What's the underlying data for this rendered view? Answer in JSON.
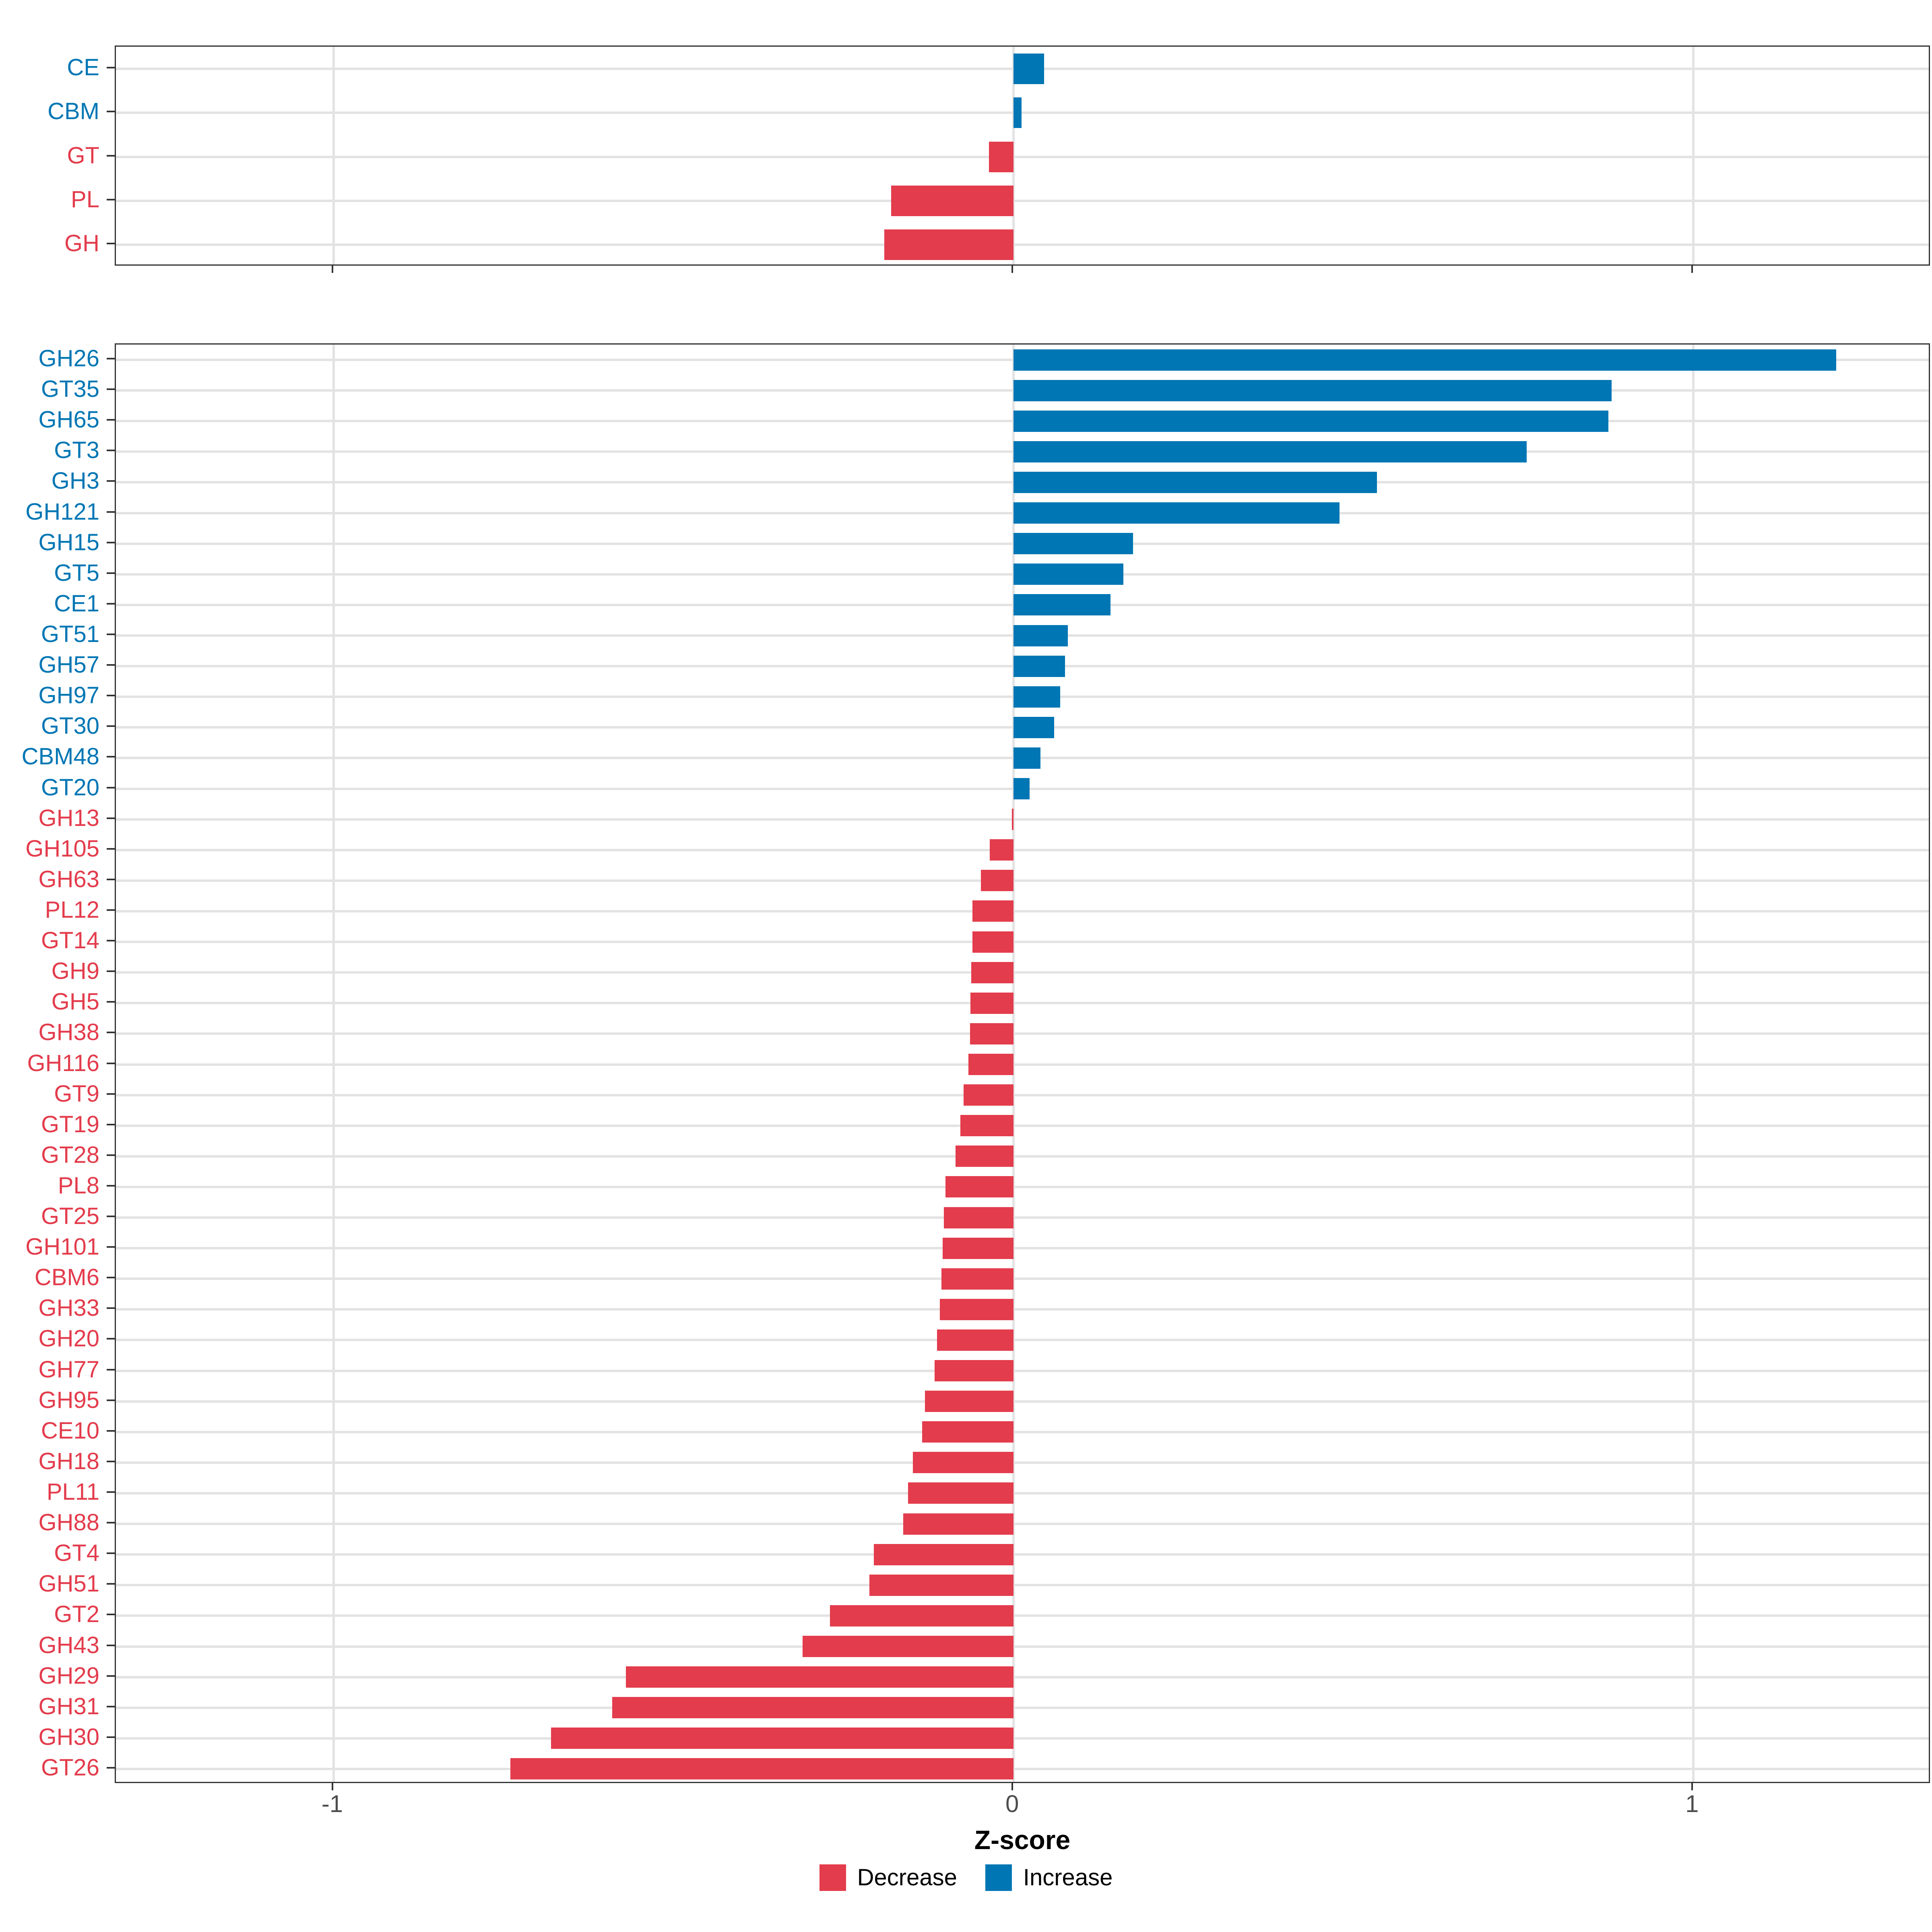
{
  "colors": {
    "increase": "#0076B4",
    "decrease": "#E33C4C",
    "grid": "#E3E3E3",
    "axis_text": "#4D4D4D",
    "panel_border": "#333333",
    "tick_mark": "#333333",
    "background": "#FFFFFF"
  },
  "axis": {
    "title": "Z-score",
    "tick_labels": [
      "-1",
      "0",
      "1"
    ]
  },
  "legend": {
    "items": [
      {
        "label": "Decrease",
        "color_key": "decrease"
      },
      {
        "label": "Increase",
        "color_key": "increase"
      }
    ]
  },
  "chart_data": {
    "type": "bar",
    "orientation": "horizontal",
    "title": "",
    "xlabel": "Z-score",
    "ylabel": "",
    "xlim": [
      -1.32,
      1.35
    ],
    "x_ticks": [
      -1,
      0,
      1
    ],
    "grid": "vertical major gridlines at -1, 0, 1 and one horizontal gridline per category row",
    "legend_position": "bottom",
    "series_colors": {
      "Decrease": "#E33C4C",
      "Increase": "#0076B4"
    },
    "panels": [
      {
        "id": "families",
        "rows": [
          {
            "label": "CE",
            "value": 0.045,
            "group": "Increase"
          },
          {
            "label": "CBM",
            "value": 0.012,
            "group": "Increase"
          },
          {
            "label": "GT",
            "value": -0.036,
            "group": "Decrease"
          },
          {
            "label": "PL",
            "value": -0.18,
            "group": "Decrease"
          },
          {
            "label": "GH",
            "value": -0.19,
            "group": "Decrease"
          }
        ]
      },
      {
        "id": "subfamilies",
        "rows": [
          {
            "label": "GH26",
            "value": 1.21,
            "group": "Increase"
          },
          {
            "label": "GT35",
            "value": 0.88,
            "group": "Increase"
          },
          {
            "label": "GH65",
            "value": 0.875,
            "group": "Increase"
          },
          {
            "label": "GT3",
            "value": 0.755,
            "group": "Increase"
          },
          {
            "label": "GH3",
            "value": 0.535,
            "group": "Increase"
          },
          {
            "label": "GH121",
            "value": 0.48,
            "group": "Increase"
          },
          {
            "label": "GH15",
            "value": 0.176,
            "group": "Increase"
          },
          {
            "label": "GT5",
            "value": 0.162,
            "group": "Increase"
          },
          {
            "label": "CE1",
            "value": 0.143,
            "group": "Increase"
          },
          {
            "label": "GT51",
            "value": 0.08,
            "group": "Increase"
          },
          {
            "label": "GH57",
            "value": 0.076,
            "group": "Increase"
          },
          {
            "label": "GH97",
            "value": 0.069,
            "group": "Increase"
          },
          {
            "label": "GT30",
            "value": 0.06,
            "group": "Increase"
          },
          {
            "label": "CBM48",
            "value": 0.04,
            "group": "Increase"
          },
          {
            "label": "GT20",
            "value": 0.024,
            "group": "Increase"
          },
          {
            "label": "GH13",
            "value": -0.002,
            "group": "Decrease"
          },
          {
            "label": "GH105",
            "value": -0.035,
            "group": "Decrease"
          },
          {
            "label": "GH63",
            "value": -0.048,
            "group": "Decrease"
          },
          {
            "label": "PL12",
            "value": -0.06,
            "group": "Decrease"
          },
          {
            "label": "GT14",
            "value": -0.06,
            "group": "Decrease"
          },
          {
            "label": "GH9",
            "value": -0.062,
            "group": "Decrease"
          },
          {
            "label": "GH5",
            "value": -0.063,
            "group": "Decrease"
          },
          {
            "label": "GH38",
            "value": -0.064,
            "group": "Decrease"
          },
          {
            "label": "GH116",
            "value": -0.066,
            "group": "Decrease"
          },
          {
            "label": "GT9",
            "value": -0.073,
            "group": "Decrease"
          },
          {
            "label": "GT19",
            "value": -0.078,
            "group": "Decrease"
          },
          {
            "label": "GT28",
            "value": -0.085,
            "group": "Decrease"
          },
          {
            "label": "PL8",
            "value": -0.1,
            "group": "Decrease"
          },
          {
            "label": "GT25",
            "value": -0.102,
            "group": "Decrease"
          },
          {
            "label": "GH101",
            "value": -0.104,
            "group": "Decrease"
          },
          {
            "label": "CBM6",
            "value": -0.106,
            "group": "Decrease"
          },
          {
            "label": "GH33",
            "value": -0.108,
            "group": "Decrease"
          },
          {
            "label": "GH20",
            "value": -0.112,
            "group": "Decrease"
          },
          {
            "label": "GH77",
            "value": -0.116,
            "group": "Decrease"
          },
          {
            "label": "GH95",
            "value": -0.13,
            "group": "Decrease"
          },
          {
            "label": "CE10",
            "value": -0.134,
            "group": "Decrease"
          },
          {
            "label": "GH18",
            "value": -0.148,
            "group": "Decrease"
          },
          {
            "label": "PL11",
            "value": -0.155,
            "group": "Decrease"
          },
          {
            "label": "GH88",
            "value": -0.162,
            "group": "Decrease"
          },
          {
            "label": "GT4",
            "value": -0.205,
            "group": "Decrease"
          },
          {
            "label": "GH51",
            "value": -0.212,
            "group": "Decrease"
          },
          {
            "label": "GT2",
            "value": -0.27,
            "group": "Decrease"
          },
          {
            "label": "GH43",
            "value": -0.31,
            "group": "Decrease"
          },
          {
            "label": "GH29",
            "value": -0.57,
            "group": "Decrease"
          },
          {
            "label": "GH31",
            "value": -0.59,
            "group": "Decrease"
          },
          {
            "label": "GH30",
            "value": -0.68,
            "group": "Decrease"
          },
          {
            "label": "GT26",
            "value": -0.74,
            "group": "Decrease"
          }
        ]
      }
    ]
  }
}
